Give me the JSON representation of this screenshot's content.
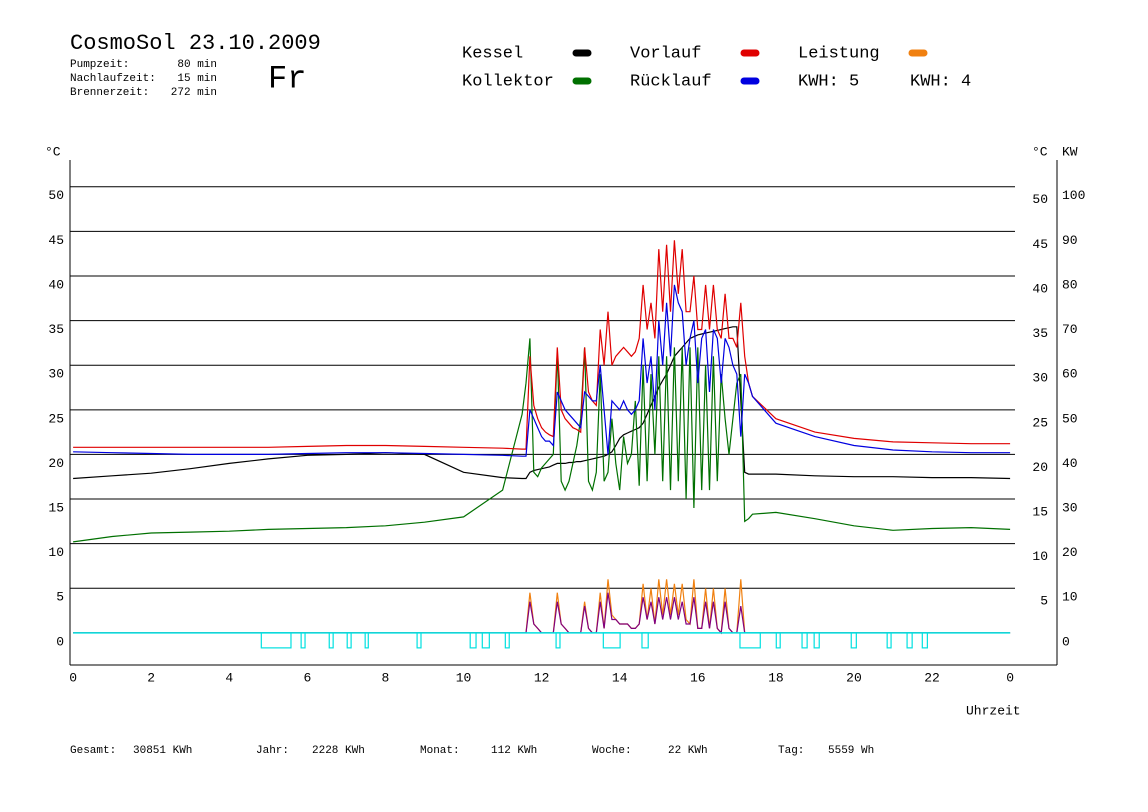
{
  "header": {
    "title": "CosmoSol 23.10.2009",
    "day": "Fr",
    "stats": [
      {
        "label": "Pumpzeit:",
        "value": "80 min"
      },
      {
        "label": "Nachlaufzeit:",
        "value": "15 min"
      },
      {
        "label": "Brennerzeit:",
        "value": "272 min"
      }
    ]
  },
  "chart_data": {
    "type": "line",
    "y_unit": "°C",
    "y2_unit_left": "°C",
    "y2_unit": "KW",
    "x_label": "Uhrzeit",
    "xlim": [
      -0.08,
      25.2
    ],
    "xticks": [
      0,
      2,
      4,
      6,
      8,
      10,
      12,
      14,
      16,
      18,
      20,
      22,
      {
        "value": 24,
        "label": "0"
      }
    ],
    "ylim": [
      -3.6,
      53
    ],
    "yticks": [
      0,
      5,
      10,
      15,
      20,
      25,
      30,
      35,
      40,
      45,
      50
    ],
    "y2lim": [
      -7.2,
      106
    ],
    "y2ticks": [
      0,
      10,
      20,
      30,
      40,
      50,
      60,
      70,
      80,
      90,
      100
    ],
    "grid": true,
    "x": [
      0,
      1,
      2,
      3,
      4,
      5,
      6,
      7,
      8,
      9,
      10,
      11,
      11.5,
      11.6,
      11.7,
      11.8,
      11.9,
      12.0,
      12.1,
      12.2,
      12.3,
      12.4,
      12.5,
      12.6,
      12.7,
      12.8,
      12.9,
      13.0,
      13.1,
      13.2,
      13.3,
      13.4,
      13.5,
      13.6,
      13.7,
      13.8,
      13.9,
      14.0,
      14.1,
      14.2,
      14.3,
      14.4,
      14.5,
      14.6,
      14.7,
      14.8,
      14.9,
      15.0,
      15.1,
      15.2,
      15.3,
      15.4,
      15.5,
      15.6,
      15.7,
      15.8,
      15.9,
      16.0,
      16.1,
      16.2,
      16.3,
      16.4,
      16.5,
      16.6,
      16.7,
      16.8,
      16.9,
      17.0,
      17.1,
      17.2,
      17.3,
      17.4,
      18,
      19,
      20,
      21,
      22,
      23,
      24
    ],
    "series": [
      {
        "name": "Kessel",
        "color": "#000000",
        "values": [
          17.3,
          17.6,
          17.9,
          18.4,
          19.0,
          19.5,
          19.9,
          20.0,
          20.2,
          20.0,
          18.0,
          17.4,
          17.3,
          17.3,
          18.0,
          18.2,
          18.3,
          18.4,
          18.5,
          18.6,
          18.8,
          19.0,
          19.0,
          19.0,
          19.1,
          19.1,
          19.2,
          19.2,
          19.3,
          19.4,
          19.5,
          19.6,
          19.7,
          19.8,
          20.0,
          20.3,
          21.0,
          21.8,
          22.2,
          22.4,
          22.6,
          22.8,
          23.0,
          23.5,
          24.5,
          25.5,
          26.5,
          27.5,
          28.3,
          29.0,
          30.0,
          31.0,
          31.5,
          32.0,
          32.5,
          33.0,
          33.2,
          33.4,
          33.5,
          33.6,
          33.7,
          33.8,
          33.9,
          34.0,
          34.1,
          34.2,
          34.3,
          34.3,
          26.0,
          18.0,
          17.8,
          17.8,
          17.8,
          17.6,
          17.5,
          17.5,
          17.4,
          17.4,
          17.3
        ]
      },
      {
        "name": "Kollektor",
        "color": "#007000",
        "values": [
          10.2,
          10.8,
          11.2,
          11.3,
          11.4,
          11.6,
          11.7,
          11.8,
          12.0,
          12.4,
          13.0,
          16.0,
          24.5,
          28,
          33,
          18,
          17.5,
          18.5,
          19,
          19.5,
          20,
          31.5,
          17,
          16,
          17,
          19,
          21,
          24,
          32,
          17,
          16,
          18,
          29,
          17,
          18,
          24,
          19,
          16,
          22,
          19,
          20,
          26,
          16.5,
          30,
          17,
          29,
          20,
          31,
          17,
          31,
          16,
          32,
          17,
          32,
          15,
          32,
          14,
          32,
          16,
          30,
          16,
          31,
          17,
          29,
          24,
          20,
          24,
          28,
          29,
          12.5,
          12.8,
          13.3,
          13.5,
          12.8,
          12.0,
          11.5,
          11.7,
          11.8,
          11.6
        ]
      },
      {
        "name": "Vorlauf",
        "color": "#e00000",
        "values": [
          20.8,
          20.8,
          20.8,
          20.8,
          20.8,
          20.8,
          20.9,
          21.0,
          21.0,
          20.9,
          20.8,
          20.7,
          20.6,
          20.6,
          31,
          25.5,
          24,
          23,
          22.5,
          22.2,
          22.0,
          32,
          25,
          24,
          23.5,
          23,
          22.8,
          22.5,
          32,
          27,
          26,
          25.5,
          34,
          30,
          36,
          30,
          31,
          31.5,
          32,
          31.5,
          31,
          31.5,
          33,
          39,
          34,
          37,
          33,
          43,
          36,
          43.5,
          36,
          44,
          38,
          43,
          36,
          36,
          40,
          34,
          34,
          39,
          34,
          39,
          34,
          33,
          38,
          33,
          33,
          32,
          37,
          31,
          28,
          26.5,
          24,
          22.5,
          21.8,
          21.4,
          21.3,
          21.2,
          21.2
        ]
      },
      {
        "name": "Rücklauf",
        "color": "#0000e0",
        "values": [
          20.3,
          20.2,
          20.1,
          20.0,
          20.0,
          20.0,
          20.1,
          20.2,
          20.2,
          20.1,
          20.0,
          19.9,
          19.8,
          19.8,
          25,
          24,
          23,
          22,
          21.5,
          21.5,
          21.0,
          27,
          26,
          25,
          24.5,
          24,
          23.5,
          23,
          27,
          26.5,
          26,
          26,
          30,
          25,
          20,
          26,
          25.5,
          25,
          26,
          25,
          24.5,
          25,
          26,
          33,
          28,
          31,
          25,
          35,
          30,
          37,
          31,
          39,
          37,
          36,
          30,
          33,
          35,
          28,
          33,
          34,
          27,
          34,
          33,
          28,
          33,
          32,
          30,
          29,
          22,
          29,
          28,
          26.5,
          23.5,
          22,
          21,
          20.5,
          20.3,
          20.2,
          20.2
        ]
      },
      {
        "name": "Leistung",
        "total_label": "KWH: 5",
        "color": "#f08010",
        "axis": "y2",
        "values": [
          0,
          0,
          0,
          0,
          0,
          0,
          0,
          0,
          0,
          0,
          0,
          0,
          0,
          0,
          9,
          2,
          1,
          0,
          0,
          0,
          0,
          9,
          2,
          1,
          0,
          0,
          0,
          0,
          7,
          1,
          0,
          0,
          9,
          1,
          12,
          4,
          3,
          2,
          2,
          2,
          1,
          1,
          2,
          11,
          3,
          10,
          2,
          12,
          4,
          12,
          4,
          11,
          4,
          11,
          3,
          2,
          12,
          1,
          1,
          10,
          1,
          10,
          1,
          0,
          10,
          1,
          0,
          0,
          12,
          0,
          0,
          0,
          0,
          0,
          0,
          0,
          0,
          0,
          0
        ]
      },
      {
        "total_label": "KWH: 4",
        "color": "#800080",
        "axis": "y2",
        "values": [
          0,
          0,
          0,
          0,
          0,
          0,
          0,
          0,
          0,
          0,
          0,
          0,
          0,
          0,
          7,
          2,
          1,
          0,
          0,
          0,
          0,
          7,
          2,
          1,
          0,
          0,
          0,
          0,
          6,
          1,
          0,
          0,
          7,
          1,
          9,
          3,
          3,
          2,
          2,
          2,
          1,
          1,
          2,
          8,
          3,
          7,
          2,
          8,
          3,
          8,
          3,
          8,
          3,
          7,
          2,
          2,
          8,
          1,
          1,
          7,
          1,
          7,
          1,
          0,
          7,
          1,
          0,
          0,
          6,
          0,
          0,
          0,
          0,
          0,
          0,
          0,
          0,
          0,
          0
        ]
      }
    ],
    "pump": {
      "color": "#00e0e0",
      "intervals": [
        [
          4.82,
          5.58
        ],
        [
          5.84,
          5.94
        ],
        [
          6.56,
          6.66
        ],
        [
          7.02,
          7.12
        ],
        [
          7.48,
          7.56
        ],
        [
          8.81,
          8.91
        ],
        [
          10.17,
          10.32
        ],
        [
          10.48,
          10.66
        ],
        [
          11.07,
          11.17
        ],
        [
          12.37,
          12.47
        ],
        [
          13.58,
          14.01
        ],
        [
          14.57,
          14.73
        ],
        [
          17.08,
          17.6
        ],
        [
          18.01,
          18.11
        ],
        [
          18.67,
          18.8
        ],
        [
          18.98,
          19.11
        ],
        [
          19.93,
          20.06
        ],
        [
          20.85,
          20.95
        ],
        [
          21.36,
          21.49
        ],
        [
          21.75,
          21.88
        ]
      ]
    }
  },
  "footer": [
    {
      "label": "Gesamt:",
      "value": "30851 KWh"
    },
    {
      "label": "Jahr:",
      "value": "2228 KWh"
    },
    {
      "label": "Monat:",
      "value": "112 KWh"
    },
    {
      "label": "Woche:",
      "value": "22 KWh"
    },
    {
      "label": "Tag:",
      "value": "5559 Wh"
    }
  ]
}
